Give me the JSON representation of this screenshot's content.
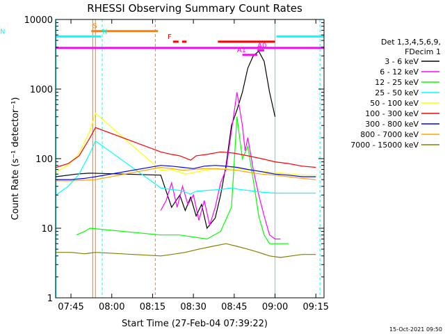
{
  "chart_data": {
    "type": "line",
    "title": "RHESSI Observing Summary Count Rates",
    "xlabel": "Start Time (27-Feb-04 07:39:22)",
    "ylabel": "Count Rate (s⁻¹ detector⁻¹)",
    "y_scale": "log",
    "ylim": [
      1,
      10000
    ],
    "xlim": [
      "07:39:22",
      "09:18:00"
    ],
    "x_ticks": [
      "07:45",
      "08:00",
      "08:15",
      "08:30",
      "08:45",
      "09:00",
      "09:15"
    ],
    "y_ticks": [
      "1",
      "10",
      "100",
      "1000",
      "10000"
    ],
    "footer_date": "15-Oct-2021 09:50",
    "legend_header": [
      "Det 1,3,4,5,6,9,",
      "FDecim 1"
    ],
    "legend_position": "right",
    "series": [
      {
        "name": "3 - 6 keV",
        "color": "#000000",
        "points": [
          [
            "07:39:30",
            55
          ],
          [
            "07:47",
            60
          ],
          [
            "07:52",
            62
          ],
          [
            "08:18",
            58
          ],
          [
            "08:22",
            20
          ],
          [
            "08:25",
            30
          ],
          [
            "08:27",
            18
          ],
          [
            "08:29",
            28
          ],
          [
            "08:31",
            15
          ],
          [
            "08:33",
            22
          ],
          [
            "08:35",
            10
          ],
          [
            "08:38",
            14
          ],
          [
            "08:40",
            30
          ],
          [
            "08:42",
            80
          ],
          [
            "08:44",
            300
          ],
          [
            "08:46",
            500
          ],
          [
            "08:48",
            900
          ],
          [
            "08:50",
            2000
          ],
          [
            "08:52",
            3000
          ],
          [
            "08:54",
            3500
          ],
          [
            "08:56",
            2500
          ],
          [
            "08:58",
            900
          ],
          [
            "09:00",
            400
          ]
        ]
      },
      {
        "name": "6 - 12 keV",
        "color": "#ff00ff",
        "points": [
          [
            "08:18",
            18
          ],
          [
            "08:20",
            25
          ],
          [
            "08:22",
            45
          ],
          [
            "08:24",
            20
          ],
          [
            "08:26",
            40
          ],
          [
            "08:28",
            22
          ],
          [
            "08:30",
            30
          ],
          [
            "08:32",
            13
          ],
          [
            "08:34",
            25
          ],
          [
            "08:36",
            11
          ],
          [
            "08:38",
            20
          ],
          [
            "08:40",
            45
          ],
          [
            "08:42",
            70
          ],
          [
            "08:44",
            250
          ],
          [
            "08:46",
            900
          ],
          [
            "08:48",
            300
          ],
          [
            "08:49",
            130
          ],
          [
            "08:50",
            200
          ],
          [
            "08:52",
            70
          ],
          [
            "08:54",
            30
          ],
          [
            "08:56",
            15
          ],
          [
            "08:58",
            8
          ],
          [
            "09:00",
            7
          ],
          [
            "09:02",
            7
          ]
        ]
      },
      {
        "name": "12 - 25 keV",
        "color": "#00ff00",
        "points": [
          [
            "07:47",
            8
          ],
          [
            "07:50",
            9
          ],
          [
            "07:52",
            10
          ],
          [
            "08:18",
            8
          ],
          [
            "08:25",
            8
          ],
          [
            "08:35",
            7
          ],
          [
            "08:40",
            9
          ],
          [
            "08:44",
            20
          ],
          [
            "08:46",
            400
          ],
          [
            "08:48",
            100
          ],
          [
            "08:50",
            150
          ],
          [
            "08:52",
            50
          ],
          [
            "08:54",
            15
          ],
          [
            "08:56",
            8
          ],
          [
            "08:58",
            6
          ],
          [
            "09:02",
            6
          ],
          [
            "09:05",
            6
          ]
        ]
      },
      {
        "name": "25 - 50 keV",
        "color": "#00ffff",
        "points": [
          [
            "07:39:30",
            30
          ],
          [
            "07:44",
            40
          ],
          [
            "07:48",
            60
          ],
          [
            "07:52",
            120
          ],
          [
            "07:54",
            180
          ],
          [
            "08:18",
            38
          ],
          [
            "08:22",
            36
          ],
          [
            "08:25",
            35
          ],
          [
            "08:29",
            31
          ],
          [
            "08:31",
            34
          ],
          [
            "08:35",
            35
          ],
          [
            "08:40",
            36
          ],
          [
            "08:44",
            38
          ],
          [
            "08:47",
            36
          ],
          [
            "08:50",
            35
          ],
          [
            "08:55",
            33
          ],
          [
            "09:00",
            32
          ],
          [
            "09:05",
            32
          ],
          [
            "09:10",
            32
          ],
          [
            "09:15",
            32
          ]
        ]
      },
      {
        "name": "50 - 100 keV",
        "color": "#ffff00",
        "points": [
          [
            "07:39:30",
            65
          ],
          [
            "07:44",
            80
          ],
          [
            "07:48",
            120
          ],
          [
            "07:52",
            250
          ],
          [
            "07:54",
            450
          ],
          [
            "08:18",
            68
          ],
          [
            "08:22",
            70
          ],
          [
            "08:27",
            60
          ],
          [
            "08:32",
            65
          ],
          [
            "08:36",
            70
          ],
          [
            "08:40",
            70
          ],
          [
            "08:45",
            75
          ],
          [
            "08:48",
            70
          ],
          [
            "08:52",
            68
          ],
          [
            "08:58",
            64
          ],
          [
            "09:03",
            62
          ],
          [
            "09:10",
            58
          ],
          [
            "09:15",
            58
          ]
        ]
      },
      {
        "name": "100 - 300 keV",
        "color": "#ff0000",
        "points": [
          [
            "07:39:30",
            75
          ],
          [
            "07:44",
            85
          ],
          [
            "07:48",
            110
          ],
          [
            "07:52",
            200
          ],
          [
            "07:54",
            280
          ],
          [
            "08:18",
            125
          ],
          [
            "08:22",
            115
          ],
          [
            "08:25",
            110
          ],
          [
            "08:29",
            95
          ],
          [
            "08:31",
            110
          ],
          [
            "08:35",
            115
          ],
          [
            "08:40",
            125
          ],
          [
            "08:45",
            120
          ],
          [
            "08:50",
            110
          ],
          [
            "08:55",
            100
          ],
          [
            "09:00",
            90
          ],
          [
            "09:05",
            85
          ],
          [
            "09:10",
            78
          ],
          [
            "09:15",
            75
          ]
        ]
      },
      {
        "name": "300 - 800 keV",
        "color": "#0000ff",
        "points": [
          [
            "07:39:30",
            50
          ],
          [
            "07:45",
            50
          ],
          [
            "07:50",
            52
          ],
          [
            "07:54",
            55
          ],
          [
            "08:18",
            80
          ],
          [
            "08:22",
            78
          ],
          [
            "08:26",
            75
          ],
          [
            "08:30",
            72
          ],
          [
            "08:34",
            78
          ],
          [
            "08:38",
            80
          ],
          [
            "08:42",
            78
          ],
          [
            "08:46",
            75
          ],
          [
            "08:50",
            70
          ],
          [
            "08:55",
            65
          ],
          [
            "09:00",
            60
          ],
          [
            "09:05",
            58
          ],
          [
            "09:10",
            55
          ],
          [
            "09:15",
            55
          ]
        ]
      },
      {
        "name": "800 - 7000 keV",
        "color": "#ffa500",
        "points": [
          [
            "07:39:30",
            48
          ],
          [
            "07:45",
            48
          ],
          [
            "07:50",
            49
          ],
          [
            "07:54",
            50
          ],
          [
            "08:18",
            75
          ],
          [
            "08:22",
            72
          ],
          [
            "08:26",
            68
          ],
          [
            "08:30",
            70
          ],
          [
            "08:34",
            72
          ],
          [
            "08:38",
            72
          ],
          [
            "08:42",
            70
          ],
          [
            "08:46",
            68
          ],
          [
            "08:50",
            64
          ],
          [
            "08:55",
            60
          ],
          [
            "09:00",
            58
          ],
          [
            "09:05",
            55
          ],
          [
            "09:10",
            52
          ],
          [
            "09:15",
            50
          ]
        ]
      },
      {
        "name": "7000 - 15000 keV",
        "color": "#808000",
        "points": [
          [
            "07:39:30",
            4.5
          ],
          [
            "07:45",
            4.5
          ],
          [
            "07:50",
            4.3
          ],
          [
            "07:54",
            4.5
          ],
          [
            "08:18",
            4
          ],
          [
            "08:22",
            4.2
          ],
          [
            "08:27",
            4.5
          ],
          [
            "08:32",
            5
          ],
          [
            "08:37",
            5.5
          ],
          [
            "08:42",
            6
          ],
          [
            "08:46",
            5.5
          ],
          [
            "08:50",
            5
          ],
          [
            "08:54",
            4.5
          ],
          [
            "08:58",
            4
          ],
          [
            "09:02",
            3.8
          ],
          [
            "09:06",
            4
          ],
          [
            "09:10",
            4.2
          ],
          [
            "09:15",
            4.2
          ]
        ]
      }
    ],
    "annotation_bars": [
      {
        "label": "S",
        "color": "#ff8000",
        "y_value": 6800,
        "x_start": "07:52:30",
        "x_end": "08:17:00",
        "label_x": "07:53"
      },
      {
        "label": "N",
        "color": "#00ffff",
        "y_value": 5700,
        "x_start": "07:39:30",
        "x_end": "07:56:00",
        "label_x": "07:56:30"
      },
      {
        "label": "N",
        "color": "#00ffff",
        "y_value": 5700,
        "x_start": "09:00:30",
        "x_end": "09:18:00",
        "label_x": ""
      },
      {
        "label": "F",
        "color": "#ff0000",
        "y_value": 4800,
        "x_start": "08:22:30",
        "x_end": "08:27:30",
        "dashed": true,
        "label_x": "08:20:30"
      },
      {
        "label": "",
        "color": "#ff0000",
        "y_value": 4800,
        "x_start": "08:39:00",
        "x_end": "09:00:00",
        "label_x": ""
      },
      {
        "label": "",
        "color": "#ff00ff",
        "y_value": 3900,
        "x_start": "07:39:30",
        "x_end": "09:18:00",
        "label_x": ""
      },
      {
        "label": "A1",
        "color": "#ff00ff",
        "y_value": 3100,
        "x_start": "08:48:00",
        "x_end": "08:53:30",
        "label_x": "08:46:00"
      },
      {
        "label": "A0",
        "color": "#ff00ff",
        "y_value": 3600,
        "x_start": "08:53:30",
        "x_end": "08:56:00",
        "label_x": "08:53:30"
      }
    ],
    "vertical_markers": [
      {
        "time": "07:53:00",
        "color": "#ff8000",
        "style": "solid"
      },
      {
        "time": "07:54:00",
        "color": "#ff8000",
        "style": "solid"
      },
      {
        "time": "07:56:30",
        "color": "#00ffff",
        "style": "dashed"
      },
      {
        "time": "08:16:00",
        "color": "#ff8000",
        "style": "dashed"
      },
      {
        "time": "09:00:00",
        "color": "#00ffff",
        "style": "solid"
      },
      {
        "time": "09:16:30",
        "color": "#00ffff",
        "style": "dashed"
      },
      {
        "time": "07:39:30",
        "color": "#00ffff",
        "style": "solid"
      }
    ]
  }
}
